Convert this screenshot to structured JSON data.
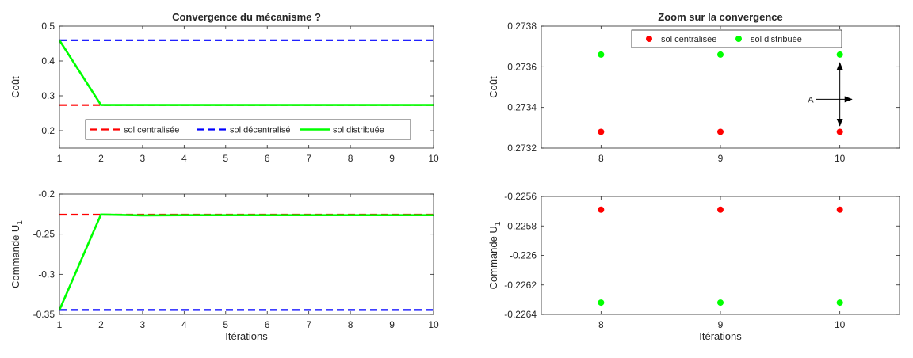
{
  "colors": {
    "centralisee": "#ff0000",
    "decentralise": "#0000ff",
    "distribuee": "#00ff00",
    "axis": "#262626",
    "annotation": "#000000"
  },
  "chart_data": [
    {
      "id": "p1",
      "type": "line",
      "title": "Convergence du mécanisme ?",
      "xlabel": "",
      "ylabel": "Coût",
      "xlim": [
        1,
        10
      ],
      "ylim": [
        0.15,
        0.5
      ],
      "xticks": [
        1,
        2,
        3,
        4,
        5,
        6,
        7,
        8,
        9,
        10
      ],
      "yticks": [
        0.2,
        0.3,
        0.4,
        0.5
      ],
      "ytick_labels": [
        "0.2",
        "0.3",
        "0.4",
        "0.5"
      ],
      "legend": "bottom-center",
      "series": [
        {
          "name": "sol centralisée",
          "key": "centralisee",
          "style": "dashed",
          "x": [
            1,
            10
          ],
          "y": [
            0.2733,
            0.2733
          ]
        },
        {
          "name": "sol décentralisé",
          "key": "decentralise",
          "style": "dashed",
          "x": [
            1,
            10
          ],
          "y": [
            0.4595,
            0.4595
          ]
        },
        {
          "name": "sol distribuée",
          "key": "distribuee",
          "style": "solid",
          "x": [
            1,
            2,
            3,
            4,
            5,
            6,
            7,
            8,
            9,
            10
          ],
          "y": [
            0.4595,
            0.2737,
            0.2737,
            0.2737,
            0.2737,
            0.2737,
            0.2737,
            0.2737,
            0.2737,
            0.2737
          ]
        }
      ]
    },
    {
      "id": "p2",
      "type": "scatter",
      "title": "Zoom sur la convergence",
      "xlabel": "",
      "ylabel": "Coût",
      "xlim": [
        7.5,
        10.5
      ],
      "ylim": [
        0.2732,
        0.2738
      ],
      "xticks": [
        8,
        9,
        10
      ],
      "yticks": [
        0.2732,
        0.2734,
        0.2736,
        0.2738
      ],
      "ytick_labels": [
        "0.2732",
        "0.2734",
        "0.2736",
        "0.2738"
      ],
      "legend": "top-center",
      "series": [
        {
          "name": "sol centralisée",
          "key": "centralisee",
          "x": [
            8,
            9,
            10
          ],
          "y": [
            0.27328,
            0.27328,
            0.27328
          ]
        },
        {
          "name": "sol distribuée",
          "key": "distribuee",
          "x": [
            8,
            9,
            10
          ],
          "y": [
            0.27366,
            0.27366,
            0.27366
          ]
        }
      ],
      "annotations": [
        {
          "text": "A",
          "arrow_from": [
            9.8,
            0.27344
          ],
          "arrow_to": [
            10.1,
            0.27344
          ]
        },
        {
          "text": "",
          "double_arrow": [
            [
              10,
              0.27362
            ],
            [
              10,
              0.27331
            ]
          ]
        }
      ]
    },
    {
      "id": "p3",
      "type": "line",
      "title": "",
      "xlabel": "Itérations",
      "ylabel": "Commande U",
      "ylabel_sub": "1",
      "xlim": [
        1,
        10
      ],
      "ylim": [
        -0.35,
        -0.2
      ],
      "xticks": [
        1,
        2,
        3,
        4,
        5,
        6,
        7,
        8,
        9,
        10
      ],
      "yticks": [
        -0.35,
        -0.3,
        -0.25,
        -0.2
      ],
      "ytick_labels": [
        "-0.35",
        "-0.3",
        "-0.25",
        "-0.2"
      ],
      "series": [
        {
          "name": "sol centralisée",
          "key": "centralisee",
          "style": "dashed",
          "x": [
            1,
            10
          ],
          "y": [
            -0.2257,
            -0.2257
          ]
        },
        {
          "name": "sol décentralisé",
          "key": "decentralise",
          "style": "dashed",
          "x": [
            1,
            10
          ],
          "y": [
            -0.3445,
            -0.3445
          ]
        },
        {
          "name": "sol distribuée",
          "key": "distribuee",
          "style": "solid",
          "x": [
            1,
            2,
            3,
            4,
            5,
            6,
            7,
            8,
            9,
            10
          ],
          "y": [
            -0.3445,
            -0.2255,
            -0.2265,
            -0.2263,
            -0.2263,
            -0.2263,
            -0.2263,
            -0.2263,
            -0.2263,
            -0.2263
          ]
        }
      ]
    },
    {
      "id": "p4",
      "type": "scatter",
      "title": "",
      "xlabel": "Itérations",
      "ylabel": "Commande U",
      "ylabel_sub": "1",
      "xlim": [
        7.5,
        10.5
      ],
      "ylim": [
        -0.2264,
        -0.2256
      ],
      "xticks": [
        8,
        9,
        10
      ],
      "yticks": [
        -0.2264,
        -0.2262,
        -0.226,
        -0.2258,
        -0.2256
      ],
      "ytick_labels": [
        "-0.2264",
        "-0.2262",
        "-0.226",
        "-0.2258",
        "-0.2256"
      ],
      "series": [
        {
          "name": "sol centralisée",
          "key": "centralisee",
          "x": [
            8,
            9,
            10
          ],
          "y": [
            -0.22569,
            -0.22569,
            -0.22569
          ]
        },
        {
          "name": "sol distribuée",
          "key": "distribuee",
          "x": [
            8,
            9,
            10
          ],
          "y": [
            -0.22632,
            -0.22632,
            -0.22632
          ]
        }
      ]
    }
  ]
}
